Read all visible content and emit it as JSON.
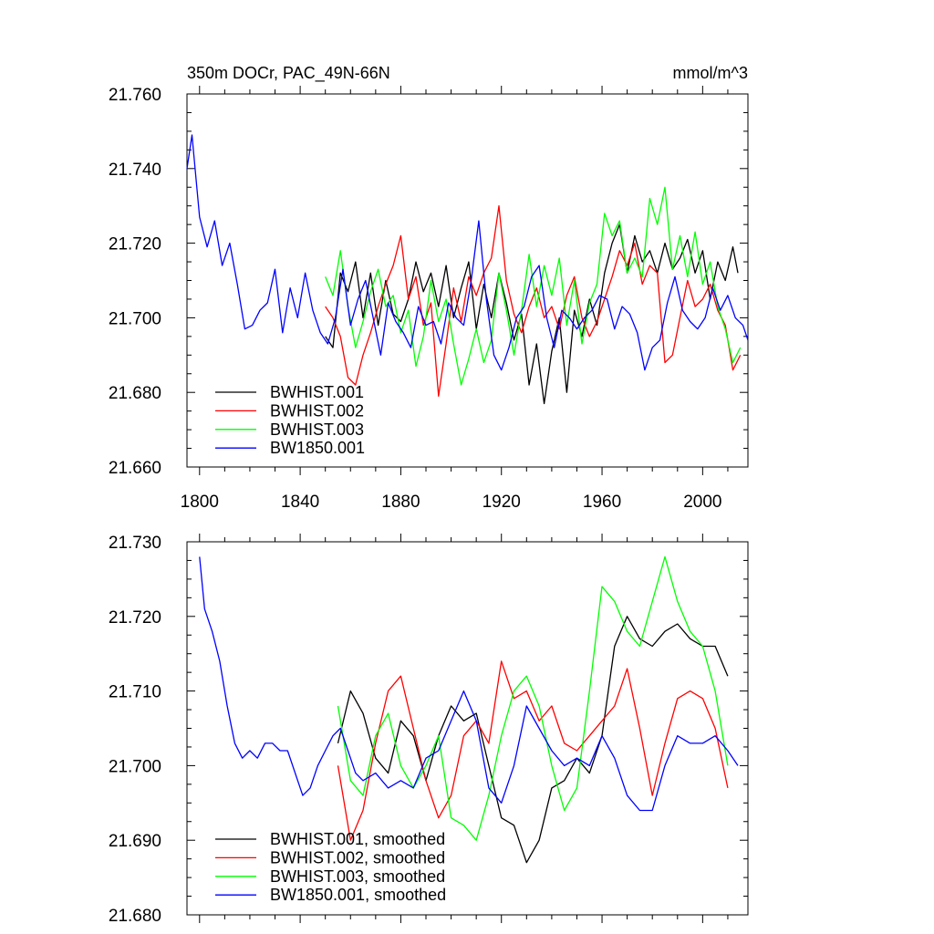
{
  "title_left": "350m DOCr, PAC_49N-66N",
  "title_right": "mmol/m^3",
  "colors": {
    "BWHIST.001": "#000000",
    "BWHIST.002": "#ff0000",
    "BWHIST.003": "#00ff00",
    "BW1850.001": "#0000ff"
  },
  "chart_data": [
    {
      "type": "line",
      "panel": "annual",
      "title": "350m DOCr, PAC_49N-66N",
      "units": "mmol/m^3",
      "xlim": [
        1795,
        2018
      ],
      "ylim": [
        21.66,
        21.76
      ],
      "xticks": [
        1800,
        1840,
        1880,
        1920,
        1960,
        2000
      ],
      "yticks": [
        21.66,
        21.68,
        21.7,
        21.72,
        21.74,
        21.76
      ],
      "ytick_labels": [
        "21.660",
        "21.680",
        "21.700",
        "21.720",
        "21.740",
        "21.760"
      ],
      "legend_position": "bottom-left",
      "series": [
        {
          "name": "BWHIST.001",
          "color": "#000000",
          "x": [
            1850,
            1853,
            1856,
            1859,
            1862,
            1865,
            1868,
            1871,
            1874,
            1877,
            1880,
            1883,
            1886,
            1889,
            1892,
            1895,
            1898,
            1901,
            1904,
            1907,
            1910,
            1913,
            1916,
            1919,
            1922,
            1925,
            1928,
            1931,
            1934,
            1937,
            1940,
            1943,
            1946,
            1949,
            1952,
            1955,
            1958,
            1961,
            1964,
            1967,
            1970,
            1973,
            1976,
            1979,
            1982,
            1985,
            1988,
            1991,
            1994,
            1997,
            2000,
            2003,
            2006,
            2009,
            2012,
            2014
          ],
          "y": [
            21.695,
            21.692,
            21.712,
            21.707,
            21.715,
            21.7,
            21.712,
            21.698,
            21.71,
            21.701,
            21.699,
            21.705,
            21.715,
            21.707,
            21.712,
            21.703,
            21.714,
            21.7,
            21.708,
            21.715,
            21.697,
            21.709,
            21.7,
            21.712,
            21.704,
            21.694,
            21.701,
            21.682,
            21.693,
            21.677,
            21.691,
            21.7,
            21.68,
            21.702,
            21.695,
            21.705,
            21.698,
            21.712,
            21.72,
            21.725,
            21.712,
            21.722,
            21.715,
            21.718,
            21.712,
            21.72,
            21.713,
            21.716,
            21.721,
            21.712,
            21.718,
            21.705,
            21.715,
            21.71,
            21.719,
            21.712
          ]
        },
        {
          "name": "BWHIST.002",
          "color": "#ff0000",
          "x": [
            1850,
            1853,
            1856,
            1859,
            1862,
            1865,
            1868,
            1871,
            1874,
            1877,
            1880,
            1883,
            1886,
            1889,
            1892,
            1895,
            1898,
            1901,
            1904,
            1907,
            1910,
            1913,
            1916,
            1919,
            1922,
            1925,
            1928,
            1931,
            1934,
            1937,
            1940,
            1943,
            1946,
            1949,
            1952,
            1955,
            1958,
            1961,
            1964,
            1967,
            1970,
            1973,
            1976,
            1979,
            1982,
            1985,
            1988,
            1991,
            1994,
            1997,
            2000,
            2003,
            2006,
            2009,
            2012,
            2015
          ],
          "y": [
            21.703,
            21.7,
            21.695,
            21.684,
            21.682,
            21.69,
            21.696,
            21.703,
            21.709,
            21.714,
            21.722,
            21.705,
            21.711,
            21.698,
            21.704,
            21.679,
            21.693,
            21.708,
            21.699,
            21.711,
            21.706,
            21.712,
            21.716,
            21.73,
            21.71,
            21.701,
            21.696,
            21.703,
            21.708,
            21.7,
            21.703,
            21.697,
            21.706,
            21.711,
            21.7,
            21.695,
            21.699,
            21.705,
            21.711,
            21.718,
            21.714,
            21.72,
            21.709,
            21.714,
            21.712,
            21.688,
            21.69,
            21.7,
            21.71,
            21.703,
            21.705,
            21.709,
            21.702,
            21.698,
            21.686,
            21.69
          ]
        },
        {
          "name": "BWHIST.003",
          "color": "#00ff00",
          "x": [
            1850,
            1853,
            1856,
            1859,
            1862,
            1865,
            1868,
            1871,
            1874,
            1877,
            1880,
            1883,
            1886,
            1889,
            1892,
            1895,
            1898,
            1901,
            1904,
            1907,
            1910,
            1913,
            1916,
            1919,
            1922,
            1925,
            1928,
            1931,
            1934,
            1937,
            1940,
            1943,
            1946,
            1949,
            1952,
            1955,
            1958,
            1961,
            1964,
            1967,
            1970,
            1973,
            1976,
            1979,
            1982,
            1985,
            1988,
            1991,
            1994,
            1997,
            2000,
            2003,
            2006,
            2009,
            2012,
            2015
          ],
          "y": [
            21.711,
            21.706,
            21.718,
            21.703,
            21.692,
            21.699,
            21.707,
            21.713,
            21.703,
            21.706,
            21.696,
            21.702,
            21.687,
            21.695,
            21.71,
            21.699,
            21.705,
            21.693,
            21.682,
            21.689,
            21.697,
            21.688,
            21.694,
            21.712,
            21.702,
            21.69,
            21.702,
            21.717,
            21.703,
            21.714,
            21.706,
            21.716,
            21.698,
            21.71,
            21.693,
            21.704,
            21.709,
            21.728,
            21.722,
            21.726,
            21.712,
            21.716,
            21.711,
            21.732,
            21.725,
            21.735,
            21.713,
            21.722,
            21.711,
            21.723,
            21.709,
            21.715,
            21.703,
            21.697,
            21.688,
            21.692
          ]
        },
        {
          "name": "BW1850.001",
          "color": "#0000ff",
          "x": [
            1795,
            1797,
            1800,
            1803,
            1806,
            1809,
            1812,
            1815,
            1818,
            1821,
            1824,
            1827,
            1830,
            1833,
            1836,
            1839,
            1842,
            1845,
            1848,
            1851,
            1854,
            1857,
            1860,
            1863,
            1866,
            1869,
            1872,
            1875,
            1878,
            1881,
            1884,
            1887,
            1890,
            1893,
            1896,
            1899,
            1902,
            1905,
            1908,
            1911,
            1914,
            1917,
            1920,
            1923,
            1926,
            1929,
            1932,
            1935,
            1938,
            1941,
            1944,
            1947,
            1950,
            1953,
            1956,
            1959,
            1962,
            1965,
            1968,
            1971,
            1974,
            1977,
            1980,
            1983,
            1986,
            1989,
            1992,
            1995,
            1998,
            2001,
            2004,
            2007,
            2010,
            2013,
            2016,
            2018
          ],
          "y": [
            21.74,
            21.749,
            21.727,
            21.719,
            21.726,
            21.714,
            21.72,
            21.709,
            21.697,
            21.698,
            21.702,
            21.704,
            21.713,
            21.696,
            21.708,
            21.7,
            21.712,
            21.702,
            21.696,
            21.693,
            21.7,
            21.713,
            21.698,
            21.705,
            21.71,
            21.7,
            21.69,
            21.704,
            21.699,
            21.696,
            21.692,
            21.703,
            21.698,
            21.699,
            21.693,
            21.704,
            21.7,
            21.698,
            21.71,
            21.726,
            21.705,
            21.69,
            21.686,
            21.692,
            21.7,
            21.703,
            21.711,
            21.714,
            21.7,
            21.692,
            21.702,
            21.7,
            21.697,
            21.7,
            21.702,
            21.706,
            21.705,
            21.697,
            21.703,
            21.701,
            21.696,
            21.686,
            21.692,
            21.694,
            21.704,
            21.711,
            21.702,
            21.699,
            21.697,
            21.7,
            21.708,
            21.702,
            21.706,
            21.7,
            21.698,
            21.694
          ]
        }
      ]
    },
    {
      "type": "line",
      "panel": "smoothed",
      "title": "",
      "units": "",
      "xlim": [
        1795,
        2018
      ],
      "ylim": [
        21.68,
        21.73
      ],
      "xticks": [
        1800,
        1840,
        1880,
        1920,
        1960,
        2000
      ],
      "xtick_labels_shown": false,
      "yticks": [
        21.68,
        21.69,
        21.7,
        21.71,
        21.72,
        21.73
      ],
      "ytick_labels": [
        "21.680",
        "21.690",
        "21.700",
        "21.710",
        "21.720",
        "21.730"
      ],
      "legend_position": "bottom-left",
      "series": [
        {
          "name": "BWHIST.001, smoothed",
          "color": "#000000",
          "x": [
            1855,
            1860,
            1865,
            1870,
            1875,
            1880,
            1885,
            1890,
            1895,
            1900,
            1905,
            1910,
            1915,
            1920,
            1925,
            1930,
            1935,
            1940,
            1945,
            1950,
            1955,
            1960,
            1965,
            1970,
            1975,
            1980,
            1985,
            1990,
            1995,
            2000,
            2005,
            2010
          ],
          "y": [
            21.703,
            21.71,
            21.707,
            21.701,
            21.699,
            21.706,
            21.704,
            21.698,
            21.704,
            21.708,
            21.706,
            21.707,
            21.7,
            21.693,
            21.692,
            21.687,
            21.69,
            21.697,
            21.698,
            21.701,
            21.699,
            21.704,
            21.716,
            21.72,
            21.717,
            21.716,
            21.718,
            21.719,
            21.717,
            21.716,
            21.716,
            21.712
          ]
        },
        {
          "name": "BWHIST.002, smoothed",
          "color": "#ff0000",
          "x": [
            1855,
            1860,
            1865,
            1870,
            1875,
            1880,
            1885,
            1890,
            1895,
            1900,
            1905,
            1910,
            1915,
            1920,
            1925,
            1930,
            1935,
            1940,
            1945,
            1950,
            1955,
            1960,
            1965,
            1970,
            1975,
            1980,
            1985,
            1990,
            1995,
            2000,
            2005,
            2010
          ],
          "y": [
            21.7,
            21.69,
            21.694,
            21.703,
            21.71,
            21.712,
            21.705,
            21.698,
            21.693,
            21.696,
            21.704,
            21.706,
            21.703,
            21.714,
            21.709,
            21.71,
            21.706,
            21.708,
            21.703,
            21.702,
            21.704,
            21.706,
            21.708,
            21.713,
            21.705,
            21.696,
            21.703,
            21.709,
            21.71,
            21.709,
            21.705,
            21.697
          ]
        },
        {
          "name": "BWHIST.003, smoothed",
          "color": "#00ff00",
          "x": [
            1855,
            1860,
            1865,
            1870,
            1875,
            1880,
            1885,
            1890,
            1895,
            1900,
            1905,
            1910,
            1915,
            1920,
            1925,
            1930,
            1935,
            1940,
            1945,
            1950,
            1955,
            1960,
            1965,
            1970,
            1975,
            1980,
            1985,
            1990,
            1995,
            2000,
            2005,
            2010
          ],
          "y": [
            21.708,
            21.698,
            21.696,
            21.704,
            21.707,
            21.7,
            21.697,
            21.7,
            21.704,
            21.693,
            21.692,
            21.69,
            21.696,
            21.704,
            21.71,
            21.712,
            21.708,
            21.7,
            21.694,
            21.697,
            21.71,
            21.724,
            21.722,
            21.718,
            21.716,
            21.722,
            21.728,
            21.722,
            21.718,
            21.716,
            21.71,
            21.7
          ]
        },
        {
          "name": "BW1850.001, smoothed",
          "color": "#0000ff",
          "x": [
            1800,
            1802,
            1805,
            1808,
            1811,
            1814,
            1817,
            1820,
            1823,
            1826,
            1829,
            1832,
            1835,
            1838,
            1841,
            1844,
            1847,
            1850,
            1853,
            1856,
            1859,
            1862,
            1865,
            1870,
            1875,
            1880,
            1885,
            1890,
            1895,
            1900,
            1905,
            1910,
            1915,
            1920,
            1925,
            1930,
            1935,
            1940,
            1945,
            1950,
            1955,
            1960,
            1965,
            1970,
            1975,
            1980,
            1985,
            1990,
            1995,
            2000,
            2005,
            2010,
            2014
          ],
          "y": [
            21.728,
            21.721,
            21.718,
            21.714,
            21.708,
            21.703,
            21.701,
            21.702,
            21.701,
            21.703,
            21.703,
            21.702,
            21.702,
            21.699,
            21.696,
            21.697,
            21.7,
            21.702,
            21.704,
            21.705,
            21.702,
            21.699,
            21.698,
            21.699,
            21.697,
            21.698,
            21.697,
            21.701,
            21.702,
            21.706,
            21.71,
            21.706,
            21.697,
            21.695,
            21.7,
            21.708,
            21.705,
            21.702,
            21.7,
            21.701,
            21.7,
            21.704,
            21.701,
            21.696,
            21.694,
            21.694,
            21.7,
            21.704,
            21.703,
            21.703,
            21.704,
            21.702,
            21.7
          ]
        }
      ]
    }
  ]
}
